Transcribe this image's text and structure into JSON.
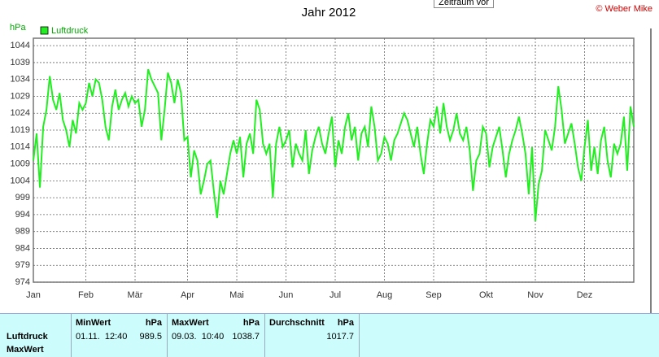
{
  "chart_data": {
    "type": "line",
    "title": "Jahr 2012",
    "y_label": "hPa",
    "copyright": "© Weber Mike",
    "button": "Zeitraum vor",
    "categories": [
      "Jan",
      null,
      null,
      null,
      null,
      null,
      null,
      null,
      null,
      null,
      null,
      null,
      null,
      null,
      null,
      null,
      "Feb",
      null,
      null,
      null,
      null,
      null,
      null,
      null,
      null,
      null,
      null,
      null,
      null,
      null,
      null,
      "Mär",
      null,
      null,
      null,
      null,
      null,
      null,
      null,
      null,
      null,
      null,
      null,
      null,
      null,
      null,
      null,
      "Apr",
      null,
      null,
      null,
      null,
      null,
      null,
      null,
      null,
      null,
      null,
      null,
      null,
      null,
      null,
      "Mai",
      null,
      null,
      null,
      null,
      null,
      null,
      null,
      null,
      null,
      null,
      null,
      null,
      null,
      null,
      "Jun",
      null,
      null,
      null,
      null,
      null,
      null,
      null,
      null,
      null,
      null,
      null,
      null,
      null,
      null,
      "Jul",
      null,
      null,
      null,
      null,
      null,
      null,
      null,
      null,
      null,
      null,
      null,
      null,
      null,
      null,
      "Aug",
      null,
      null,
      null,
      null,
      null,
      null,
      null,
      null,
      null,
      null,
      null,
      null,
      null,
      null,
      "Sep",
      null,
      null,
      null,
      null,
      null,
      null,
      null,
      null,
      null,
      null,
      null,
      null,
      null,
      null,
      null,
      "Okt",
      null,
      null,
      null,
      null,
      null,
      null,
      null,
      null,
      null,
      null,
      null,
      null,
      null,
      null,
      "Nov",
      null,
      null,
      null,
      null,
      null,
      null,
      null,
      null,
      null,
      null,
      null,
      null,
      null,
      null,
      "Dez",
      null,
      null,
      null,
      null,
      null,
      null,
      null,
      null,
      null,
      null,
      null,
      null,
      null,
      null,
      null
    ],
    "series": [
      {
        "name": "Luftdruck",
        "color": "#22ee22",
        "values": [
          1010,
          1018,
          1002,
          1020,
          1025,
          1035,
          1028,
          1025,
          1030,
          1022,
          1019,
          1014,
          1022,
          1018,
          1027,
          1025,
          1027,
          1033,
          1029,
          1034,
          1033,
          1028,
          1020,
          1016,
          1026,
          1031,
          1025,
          1028,
          1030,
          1026,
          1029,
          1027,
          1028,
          1020,
          1025,
          1037,
          1034,
          1032,
          1030,
          1016,
          1025,
          1036,
          1033,
          1027,
          1034,
          1030,
          1016,
          1017,
          1005,
          1013,
          1010,
          1000,
          1004,
          1009,
          1010,
          1001,
          993,
          1004,
          1000,
          1006,
          1012,
          1016,
          1012,
          1017,
          1005,
          1015,
          1018,
          1012,
          1028,
          1025,
          1015,
          1012,
          1015,
          999,
          1015,
          1020,
          1014,
          1016,
          1019,
          1008,
          1015,
          1012,
          1010,
          1019,
          1006,
          1013,
          1017,
          1020,
          1015,
          1012,
          1018,
          1023,
          1008,
          1016,
          1012,
          1020,
          1024,
          1016,
          1020,
          1010,
          1018,
          1020,
          1014,
          1026,
          1020,
          1010,
          1012,
          1017,
          1015,
          1010,
          1016,
          1018,
          1021,
          1024,
          1022,
          1018,
          1014,
          1020,
          1012,
          1006,
          1015,
          1022,
          1020,
          1026,
          1018,
          1027,
          1020,
          1016,
          1019,
          1024,
          1018,
          1016,
          1020,
          1013,
          1001,
          1010,
          1012,
          1020,
          1018,
          1008,
          1014,
          1017,
          1020,
          1013,
          1005,
          1012,
          1016,
          1019,
          1023,
          1018,
          1012,
          1000,
          1014,
          992,
          1003,
          1007,
          1019,
          1016,
          1013,
          1020,
          1032,
          1025,
          1015,
          1018,
          1021,
          1015,
          1008,
          1004,
          1014,
          1022,
          1007,
          1014,
          1006,
          1016,
          1020,
          1010,
          1005,
          1015,
          1012,
          1015,
          1023,
          1007,
          1026,
          1020
        ]
      }
    ],
    "ylim": [
      974,
      1046.2
    ],
    "yticks": [
      974,
      979,
      984,
      989,
      994,
      999,
      1004,
      1009,
      1014,
      1019,
      1024,
      1029,
      1034,
      1039,
      1044
    ],
    "grid": true
  },
  "summary": {
    "row_labels": [
      "Luftdruck",
      "MaxWert"
    ],
    "columns": [
      {
        "title": "MinWert",
        "unit": "hPa",
        "time": "01.11.  12:40",
        "value": 989.5
      },
      {
        "title": "MaxWert",
        "unit": "hPa",
        "time": "09.03.  10:40",
        "value": 1038.7
      },
      {
        "title": "Durchschnitt",
        "unit": "hPa",
        "value": 1017.7
      }
    ]
  }
}
